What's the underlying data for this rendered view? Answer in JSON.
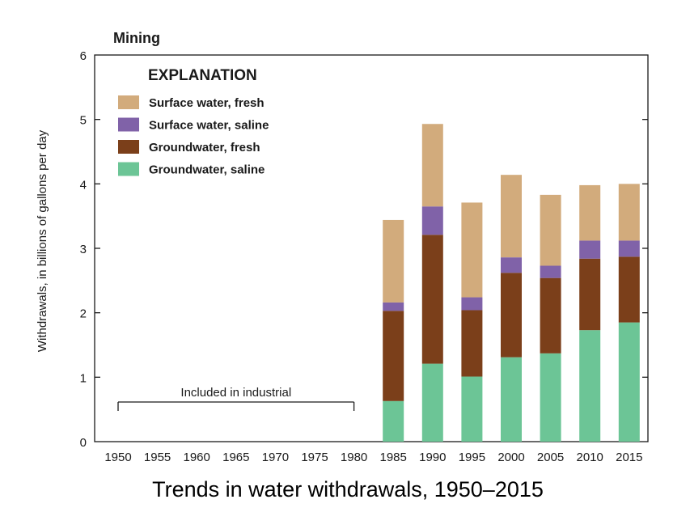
{
  "chart_data": {
    "type": "bar",
    "stacked": true,
    "title": "Mining",
    "caption": "Trends in water withdrawals, 1950–2015",
    "xlabel": "",
    "ylabel": "Withdrawals, in billions of gallons per day",
    "ylim": [
      0,
      6
    ],
    "yticks": [
      0,
      1,
      2,
      3,
      4,
      5,
      6
    ],
    "categories": [
      "1950",
      "1955",
      "1960",
      "1965",
      "1970",
      "1975",
      "1980",
      "1985",
      "1990",
      "1995",
      "2000",
      "2005",
      "2010",
      "2015"
    ],
    "legend_title": "EXPLANATION",
    "legend_position": "top-left",
    "series": [
      {
        "name": "Groundwater, saline",
        "color": "#6cc596",
        "values": [
          null,
          null,
          null,
          null,
          null,
          null,
          null,
          0.63,
          1.21,
          1.01,
          1.31,
          1.37,
          1.73,
          1.85
        ]
      },
      {
        "name": "Groundwater, fresh",
        "color": "#7b3f1a",
        "values": [
          null,
          null,
          null,
          null,
          null,
          null,
          null,
          1.4,
          2.0,
          1.03,
          1.31,
          1.17,
          1.11,
          1.02
        ]
      },
      {
        "name": "Surface water, saline",
        "color": "#8062a8",
        "values": [
          null,
          null,
          null,
          null,
          null,
          null,
          null,
          0.13,
          0.44,
          0.2,
          0.24,
          0.19,
          0.28,
          0.25
        ]
      },
      {
        "name": "Surface water, fresh",
        "color": "#d2ab7c",
        "values": [
          null,
          null,
          null,
          null,
          null,
          null,
          null,
          1.28,
          1.28,
          1.47,
          1.28,
          1.1,
          0.86,
          0.88
        ]
      }
    ],
    "legend_order": [
      "Surface water, fresh",
      "Surface water, saline",
      "Groundwater, fresh",
      "Groundwater, saline"
    ],
    "annotation": {
      "text": "Included in industrial",
      "from": "1950",
      "to": "1980"
    }
  }
}
